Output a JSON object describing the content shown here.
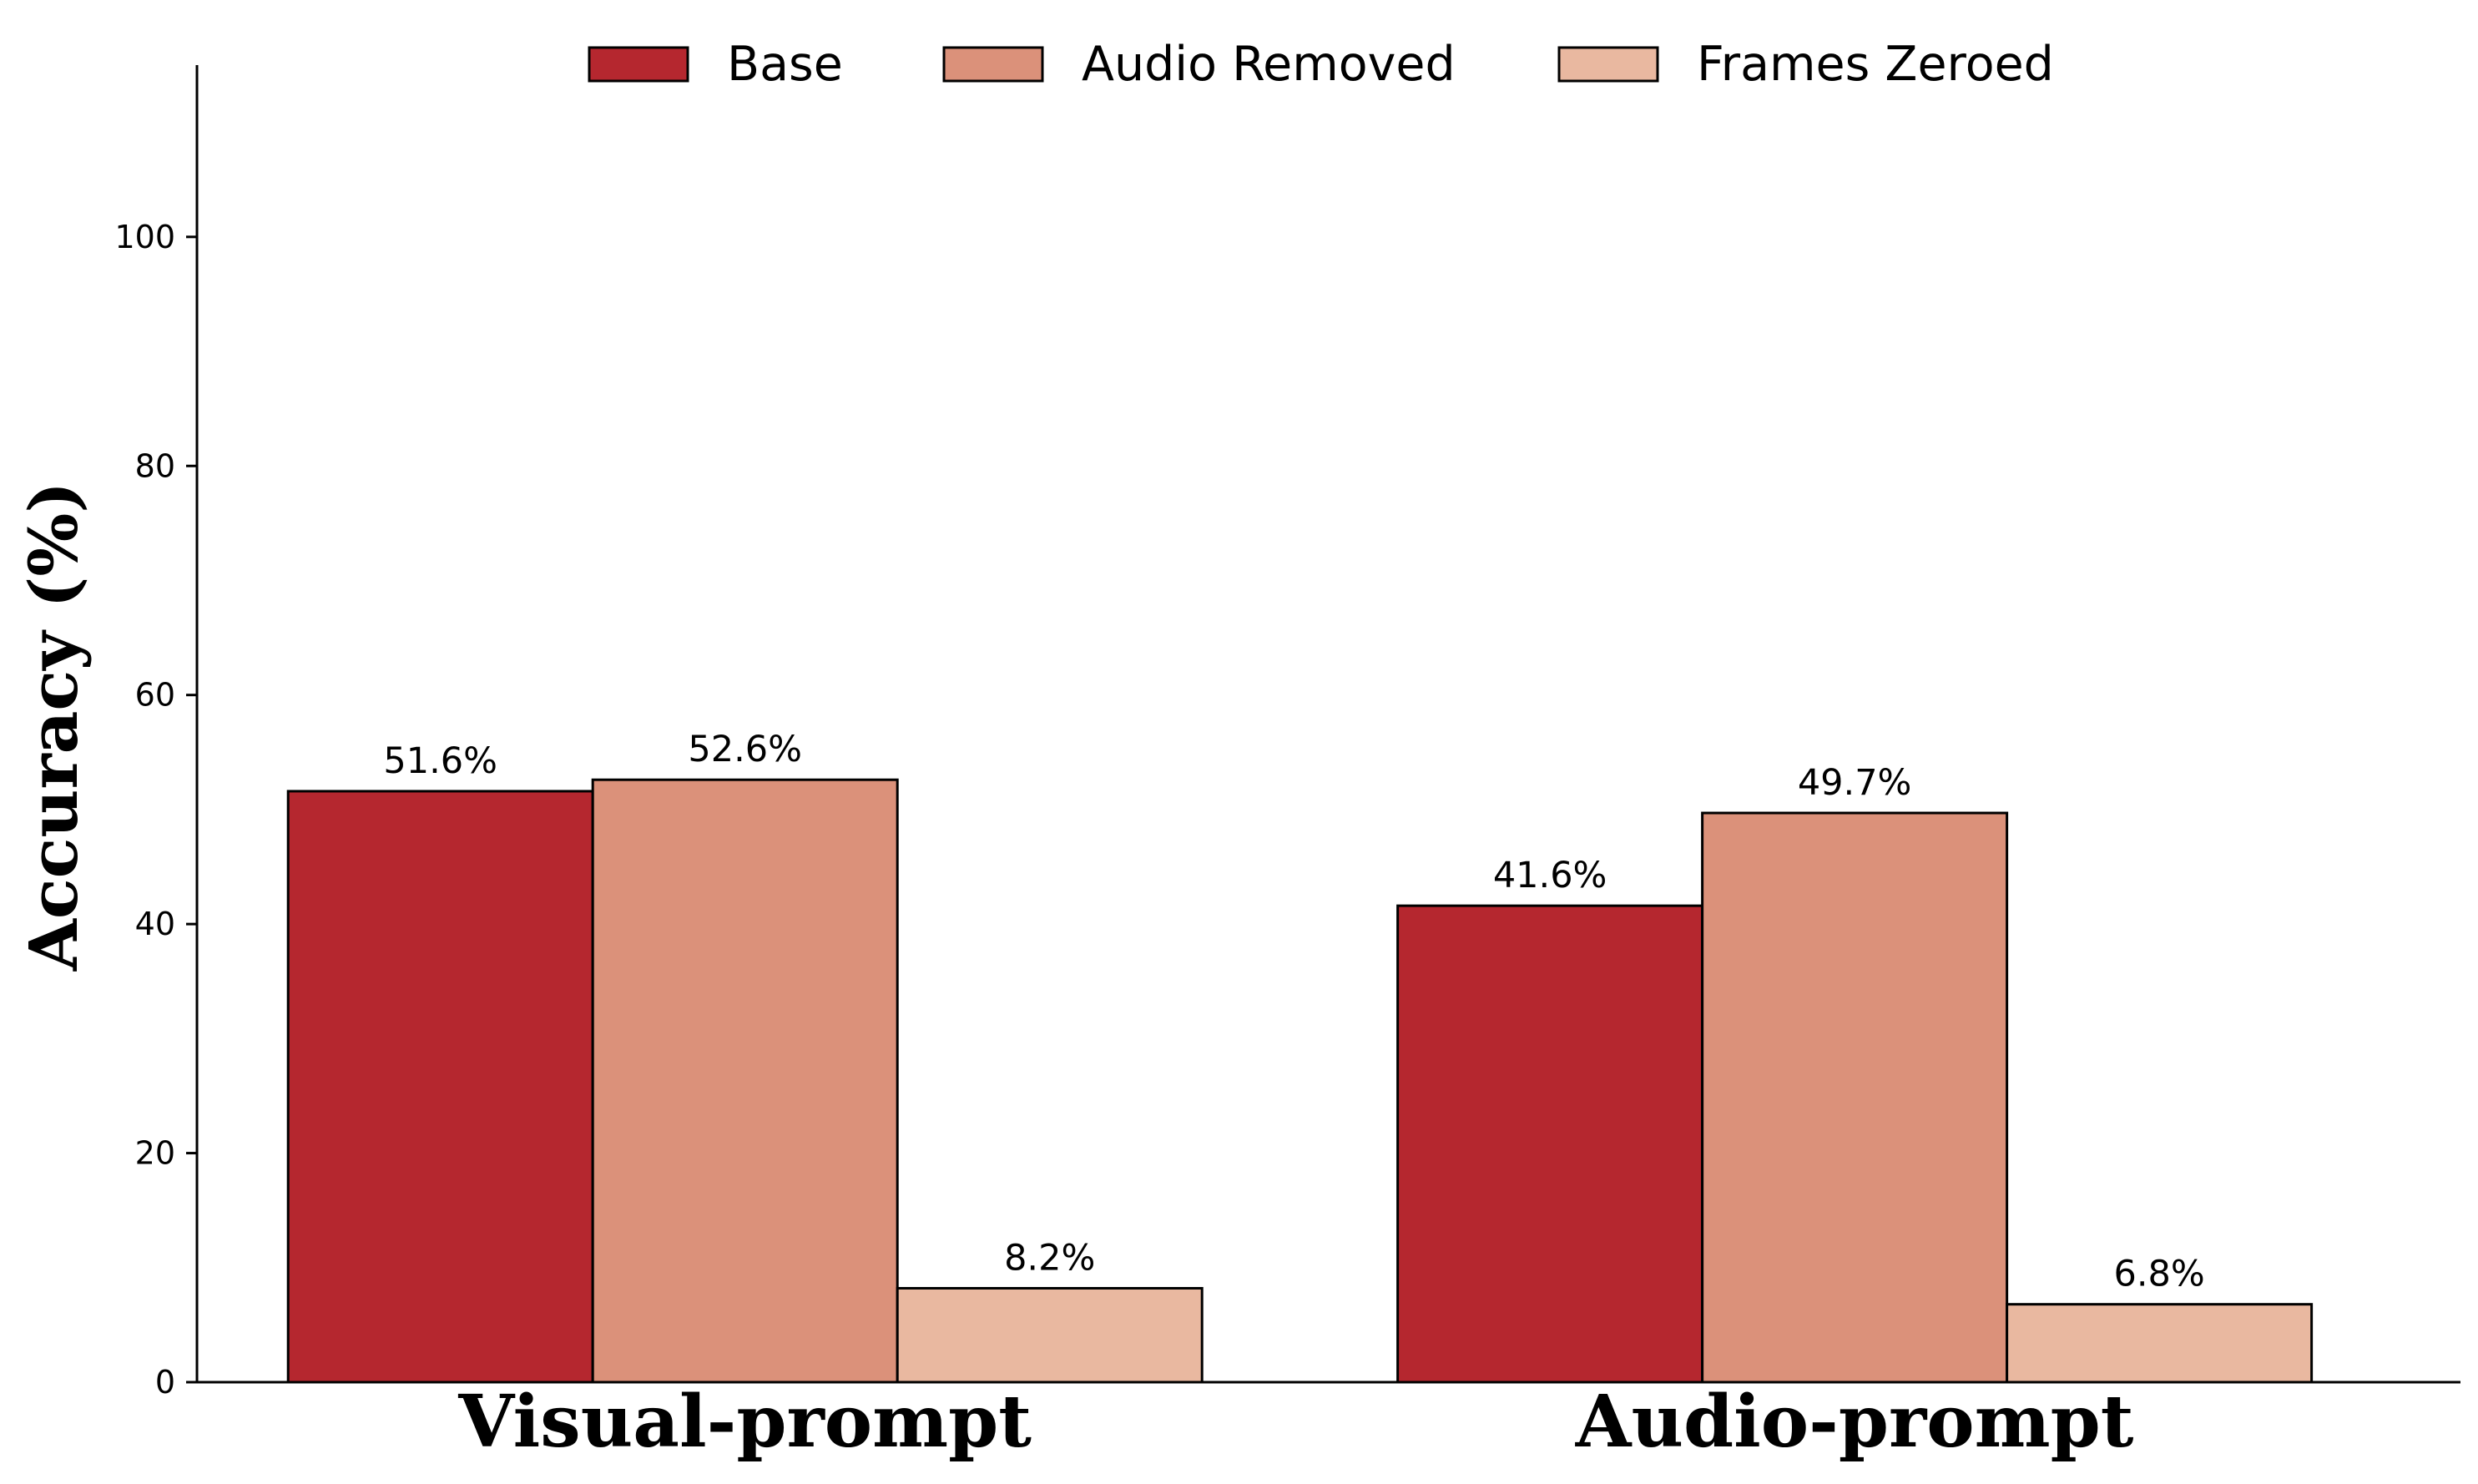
{
  "chart_data": {
    "type": "bar",
    "categories": [
      "Visual-prompt",
      "Audio-prompt"
    ],
    "series": [
      {
        "name": "Base",
        "color": "#b5272f",
        "values": [
          51.6,
          41.6
        ],
        "labels": [
          "51.6%",
          "41.6%"
        ]
      },
      {
        "name": "Audio Removed",
        "color": "#db917a",
        "values": [
          52.6,
          49.7
        ],
        "labels": [
          "52.6%",
          "49.7%"
        ]
      },
      {
        "name": "Frames Zeroed",
        "color": "#e9b8a0",
        "values": [
          8.2,
          6.8
        ],
        "labels": [
          "8.2%",
          "6.8%"
        ]
      }
    ],
    "title": "",
    "xlabel": "",
    "ylabel": "Accuracy (%)",
    "ylim": [
      0,
      115
    ],
    "yticks": [
      0,
      20,
      40,
      60,
      80,
      100
    ],
    "grid": false,
    "legend_position": "top-center"
  }
}
